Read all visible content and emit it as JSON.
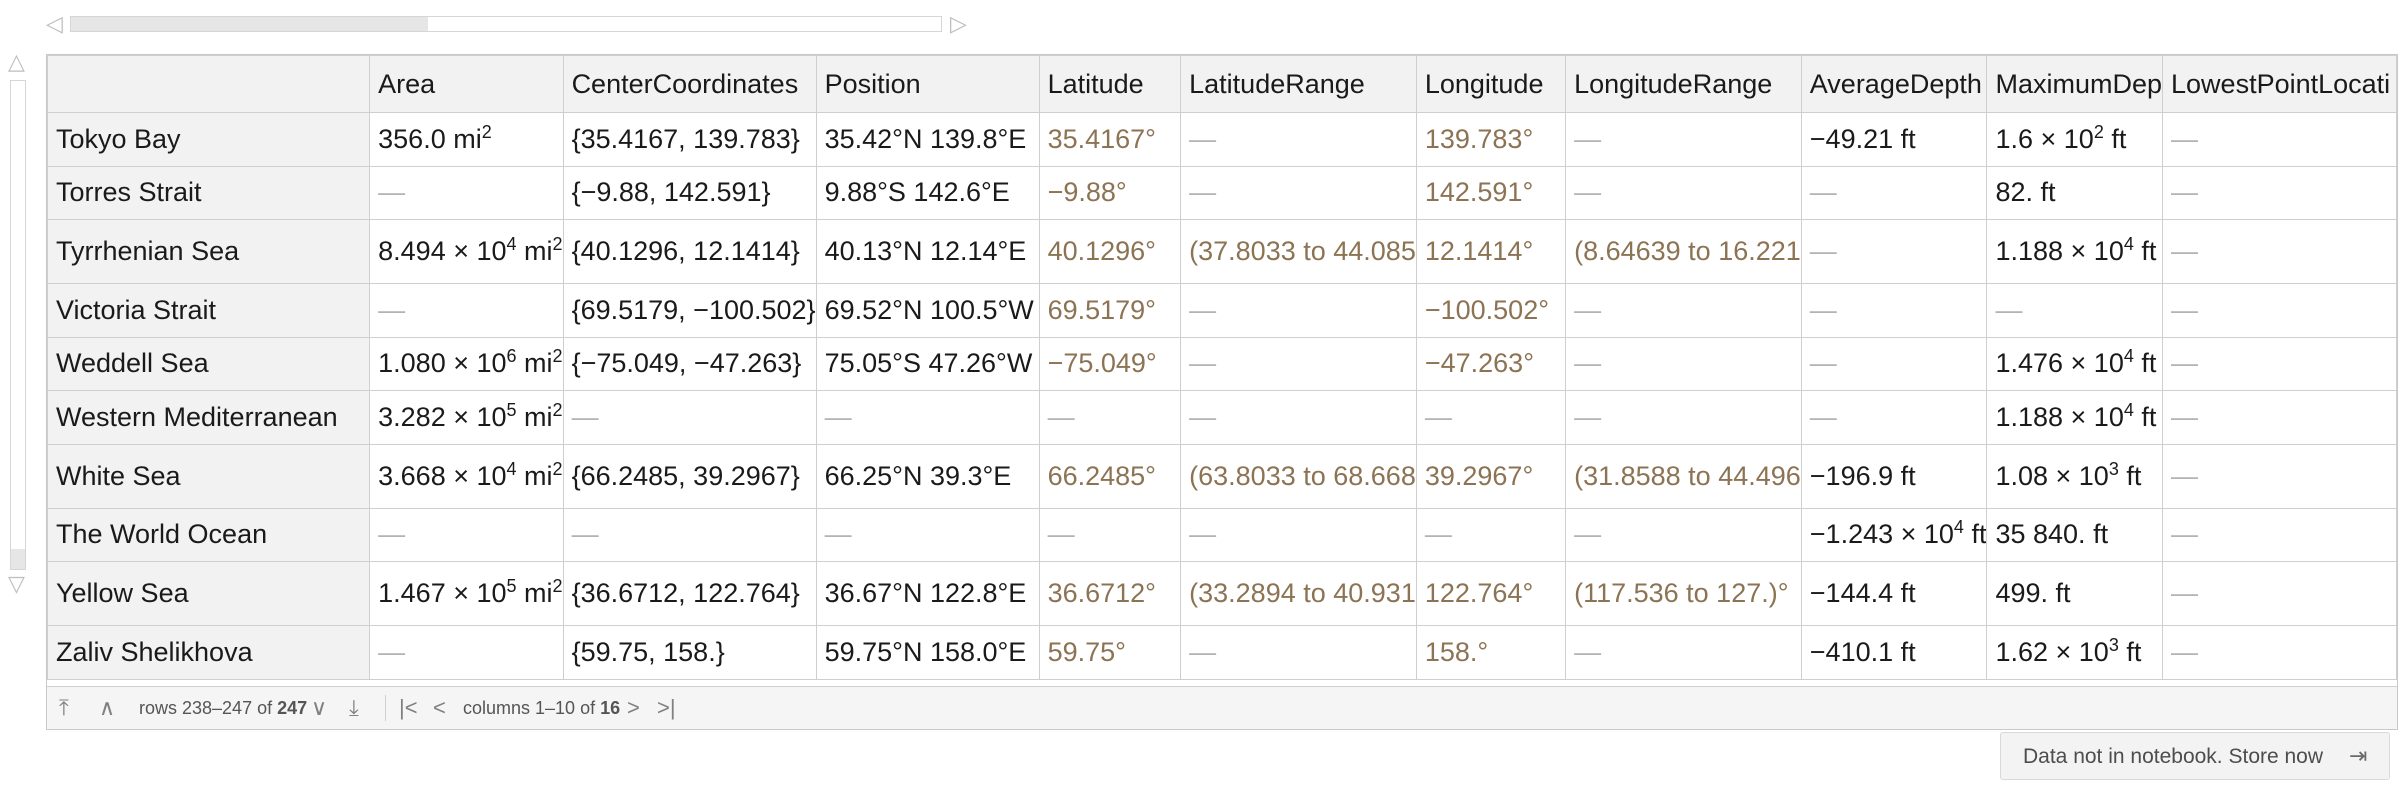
{
  "scrollbars": {
    "left_arrow": "◁",
    "right_arrow": "▷",
    "up_arrow": "△",
    "down_arrow": "▽",
    "horizontal_fraction": 0.41,
    "vertical_fraction": 0.04
  },
  "table": {
    "columns": [
      "",
      "Area",
      "CenterCoordinates",
      "Position",
      "Latitude",
      "LatitudeRange",
      "Longitude",
      "LongitudeRange",
      "AverageDepth",
      "MaximumDep",
      "LowestPointLocati"
    ],
    "rows": [
      {
        "name": "Tokyo Bay",
        "area": {
          "m": "356.0",
          "e": "",
          "u": "mi",
          "p": "2"
        },
        "center": "{35.4167, 139.783}",
        "position": "35.42°N 139.8°E",
        "lat": "35.4167°",
        "latrange": "—",
        "lon": "139.783°",
        "lonrange": "—",
        "avgdepth": {
          "m": "−49.21",
          "e": "",
          "u": "ft"
        },
        "maxdepth": {
          "m": "1.6 × 10",
          "e": "2",
          "u": "ft"
        },
        "lowest": "—"
      },
      {
        "name": "Torres Strait",
        "area": null,
        "center": "{−9.88, 142.591}",
        "position": "9.88°S 142.6°E",
        "lat": "−9.88°",
        "latrange": "—",
        "lon": "142.591°",
        "lonrange": "—",
        "avgdepth": null,
        "maxdepth": {
          "m": "82.",
          "e": "",
          "u": "ft"
        },
        "lowest": "—"
      },
      {
        "name": "Tyrrhenian Sea",
        "area": {
          "m": "8.494 × 10",
          "e": "4",
          "u": "mi",
          "p": "2"
        },
        "center": "{40.1296, 12.1414}",
        "position": "40.13°N 12.14°E",
        "lat": "40.1296°",
        "latrange": "(37.8033 to 44.085",
        "lon": "12.1414°",
        "lonrange": "(8.64639 to 16.221",
        "avgdepth": null,
        "maxdepth": {
          "m": "1.188 × 10",
          "e": "4",
          "u": "ft"
        },
        "lowest": "—"
      },
      {
        "name": "Victoria Strait",
        "area": null,
        "center": "{69.5179, −100.502}",
        "position": "69.52°N 100.5°W",
        "lat": "69.5179°",
        "latrange": "—",
        "lon": "−100.502°",
        "lonrange": "—",
        "avgdepth": null,
        "maxdepth": null,
        "lowest": "—"
      },
      {
        "name": "Weddell Sea",
        "area": {
          "m": "1.080 × 10",
          "e": "6",
          "u": "mi",
          "p": "2"
        },
        "center": "{−75.049, −47.263}",
        "position": "75.05°S 47.26°W",
        "lat": "−75.049°",
        "latrange": "—",
        "lon": "−47.263°",
        "lonrange": "—",
        "avgdepth": null,
        "maxdepth": {
          "m": "1.476 × 10",
          "e": "4",
          "u": "ft"
        },
        "lowest": "—"
      },
      {
        "name": "Western Mediterranean",
        "area": {
          "m": "3.282 × 10",
          "e": "5",
          "u": "mi",
          "p": "2"
        },
        "center": "—",
        "position": "—",
        "lat": "—",
        "latrange": "—",
        "lon": "—",
        "lonrange": "—",
        "avgdepth": null,
        "maxdepth": {
          "m": "1.188 × 10",
          "e": "4",
          "u": "ft"
        },
        "lowest": "—"
      },
      {
        "name": "White Sea",
        "area": {
          "m": "3.668 × 10",
          "e": "4",
          "u": "mi",
          "p": "2"
        },
        "center": "{66.2485, 39.2967}",
        "position": "66.25°N 39.3°E",
        "lat": "66.2485°",
        "latrange": "(63.8033 to 68.668",
        "lon": "39.2967°",
        "lonrange": "(31.8588 to 44.496",
        "avgdepth": {
          "m": "−196.9",
          "e": "",
          "u": "ft"
        },
        "maxdepth": {
          "m": "1.08 × 10",
          "e": "3",
          "u": "ft"
        },
        "lowest": "—"
      },
      {
        "name": "The World Ocean",
        "area": null,
        "center": "—",
        "position": "—",
        "lat": "—",
        "latrange": "—",
        "lon": "—",
        "lonrange": "—",
        "avgdepth": {
          "m": "−1.243 × 10",
          "e": "4",
          "u": "ft"
        },
        "maxdepth": {
          "m": "35 840.",
          "e": "",
          "u": "ft"
        },
        "lowest": "—"
      },
      {
        "name": "Yellow Sea",
        "area": {
          "m": "1.467 × 10",
          "e": "5",
          "u": "mi",
          "p": "2"
        },
        "center": "{36.6712, 122.764}",
        "position": "36.67°N 122.8°E",
        "lat": "36.6712°",
        "latrange": "(33.2894 to 40.931",
        "lon": "122.764°",
        "lonrange": "(117.536 to 127.)°",
        "avgdepth": {
          "m": "−144.4",
          "e": "",
          "u": "ft"
        },
        "maxdepth": {
          "m": "499.",
          "e": "",
          "u": "ft"
        },
        "lowest": "—"
      },
      {
        "name": "Zaliv Shelikhova",
        "area": null,
        "center": "{59.75, 158.}",
        "position": "59.75°N 158.0°E",
        "lat": "59.75°",
        "latrange": "—",
        "lon": "158.°",
        "lonrange": "—",
        "avgdepth": {
          "m": "−410.1",
          "e": "",
          "u": "ft"
        },
        "maxdepth": {
          "m": "1.62 × 10",
          "e": "3",
          "u": "ft"
        },
        "lowest": "—"
      }
    ]
  },
  "footer": {
    "first_icon": "⤒",
    "prev_icon": "∧",
    "rows_prefix": "rows 238–247 of ",
    "rows_total": "247",
    "next_icon": "∨",
    "last_icon": "⤓",
    "col_first_icon": "|<",
    "col_prev_icon": "<",
    "cols_prefix": "columns 1–10 of ",
    "cols_total": "16",
    "col_next_icon": ">",
    "col_last_icon": ">|"
  },
  "store_button": {
    "label": "Data not in notebook. Store now",
    "icon": "⇥"
  },
  "colors": {
    "angle": "#8c7353",
    "dash": "#b3b3b3",
    "header_bg": "#f2f2f2"
  }
}
